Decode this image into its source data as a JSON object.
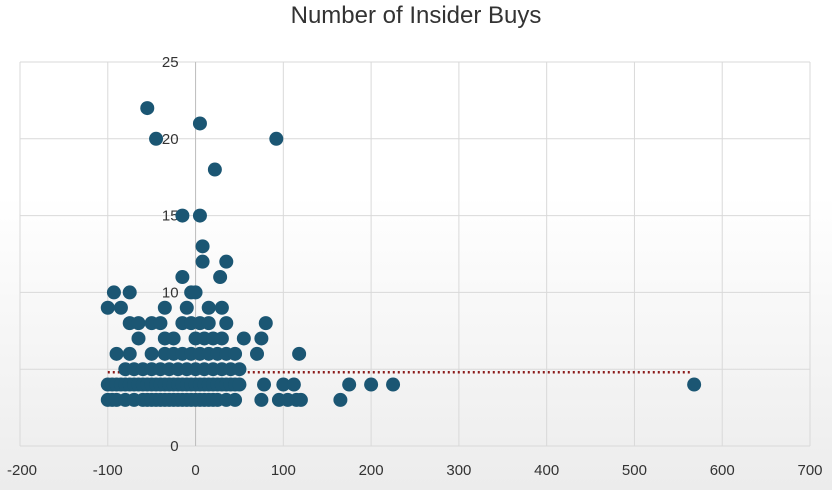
{
  "chart_data": {
    "type": "scatter",
    "title": "Number of Insider Buys",
    "xlabel": "",
    "ylabel": "",
    "xlim": [
      -200,
      700
    ],
    "ylim": [
      0,
      25
    ],
    "x_ticks": [
      -200,
      -100,
      0,
      100,
      200,
      300,
      400,
      500,
      600,
      700
    ],
    "y_ticks": [
      0,
      5,
      10,
      15,
      20,
      25
    ],
    "grid": true,
    "legend": "none",
    "marker_color": "#1b5673",
    "trendline": {
      "style": "dotted",
      "color": "#8b1a1a",
      "x": [
        -100,
        565
      ],
      "y": [
        4.8,
        4.8
      ]
    },
    "series": [
      {
        "points": [
          [
            -55,
            22
          ],
          [
            -45,
            20
          ],
          [
            5,
            21
          ],
          [
            92,
            20
          ],
          [
            22,
            18
          ],
          [
            -15,
            15
          ],
          [
            5,
            15
          ],
          [
            8,
            13
          ],
          [
            8,
            12
          ],
          [
            35,
            12
          ],
          [
            -15,
            11
          ],
          [
            28,
            11
          ],
          [
            -100,
            9
          ],
          [
            -93,
            10
          ],
          [
            -75,
            10
          ],
          [
            -5,
            10
          ],
          [
            0,
            10
          ],
          [
            -85,
            9
          ],
          [
            -35,
            9
          ],
          [
            -10,
            9
          ],
          [
            15,
            9
          ],
          [
            30,
            9
          ],
          [
            -75,
            8
          ],
          [
            -65,
            8
          ],
          [
            -50,
            8
          ],
          [
            -40,
            8
          ],
          [
            -15,
            8
          ],
          [
            -5,
            8
          ],
          [
            5,
            8
          ],
          [
            15,
            8
          ],
          [
            35,
            8
          ],
          [
            80,
            8
          ],
          [
            -65,
            7
          ],
          [
            -35,
            7
          ],
          [
            -25,
            7
          ],
          [
            0,
            7
          ],
          [
            10,
            7
          ],
          [
            20,
            7
          ],
          [
            30,
            7
          ],
          [
            55,
            7
          ],
          [
            75,
            7
          ],
          [
            -90,
            6
          ],
          [
            -75,
            6
          ],
          [
            -50,
            6
          ],
          [
            -35,
            6
          ],
          [
            -25,
            6
          ],
          [
            -15,
            6
          ],
          [
            -5,
            6
          ],
          [
            5,
            6
          ],
          [
            15,
            6
          ],
          [
            25,
            6
          ],
          [
            35,
            6
          ],
          [
            45,
            6
          ],
          [
            70,
            6
          ],
          [
            118,
            6
          ],
          [
            -80,
            5
          ],
          [
            -70,
            5
          ],
          [
            -60,
            5
          ],
          [
            -50,
            5
          ],
          [
            -40,
            5
          ],
          [
            -30,
            5
          ],
          [
            -20,
            5
          ],
          [
            -10,
            5
          ],
          [
            0,
            5
          ],
          [
            10,
            5
          ],
          [
            20,
            5
          ],
          [
            30,
            5
          ],
          [
            40,
            5
          ],
          [
            50,
            5
          ],
          [
            -100,
            4
          ],
          [
            -95,
            4
          ],
          [
            -90,
            4
          ],
          [
            -85,
            4
          ],
          [
            -80,
            4
          ],
          [
            -75,
            4
          ],
          [
            -70,
            4
          ],
          [
            -65,
            4
          ],
          [
            -60,
            4
          ],
          [
            -55,
            4
          ],
          [
            -50,
            4
          ],
          [
            -45,
            4
          ],
          [
            -40,
            4
          ],
          [
            -35,
            4
          ],
          [
            -30,
            4
          ],
          [
            -25,
            4
          ],
          [
            -20,
            4
          ],
          [
            -15,
            4
          ],
          [
            -10,
            4
          ],
          [
            -5,
            4
          ],
          [
            0,
            4
          ],
          [
            5,
            4
          ],
          [
            10,
            4
          ],
          [
            15,
            4
          ],
          [
            20,
            4
          ],
          [
            25,
            4
          ],
          [
            30,
            4
          ],
          [
            35,
            4
          ],
          [
            40,
            4
          ],
          [
            45,
            4
          ],
          [
            50,
            4
          ],
          [
            78,
            4
          ],
          [
            100,
            4
          ],
          [
            112,
            4
          ],
          [
            175,
            4
          ],
          [
            200,
            4
          ],
          [
            225,
            4
          ],
          [
            568,
            4
          ],
          [
            -100,
            3
          ],
          [
            -95,
            3
          ],
          [
            -90,
            3
          ],
          [
            -80,
            3
          ],
          [
            -70,
            3
          ],
          [
            -60,
            3
          ],
          [
            -55,
            3
          ],
          [
            -50,
            3
          ],
          [
            -45,
            3
          ],
          [
            -40,
            3
          ],
          [
            -35,
            3
          ],
          [
            -30,
            3
          ],
          [
            -25,
            3
          ],
          [
            -20,
            3
          ],
          [
            -15,
            3
          ],
          [
            -10,
            3
          ],
          [
            -5,
            3
          ],
          [
            0,
            3
          ],
          [
            5,
            3
          ],
          [
            10,
            3
          ],
          [
            15,
            3
          ],
          [
            20,
            3
          ],
          [
            25,
            3
          ],
          [
            35,
            3
          ],
          [
            45,
            3
          ],
          [
            75,
            3
          ],
          [
            95,
            3
          ],
          [
            105,
            3
          ],
          [
            115,
            3
          ],
          [
            120,
            3
          ],
          [
            165,
            3
          ]
        ]
      }
    ]
  }
}
